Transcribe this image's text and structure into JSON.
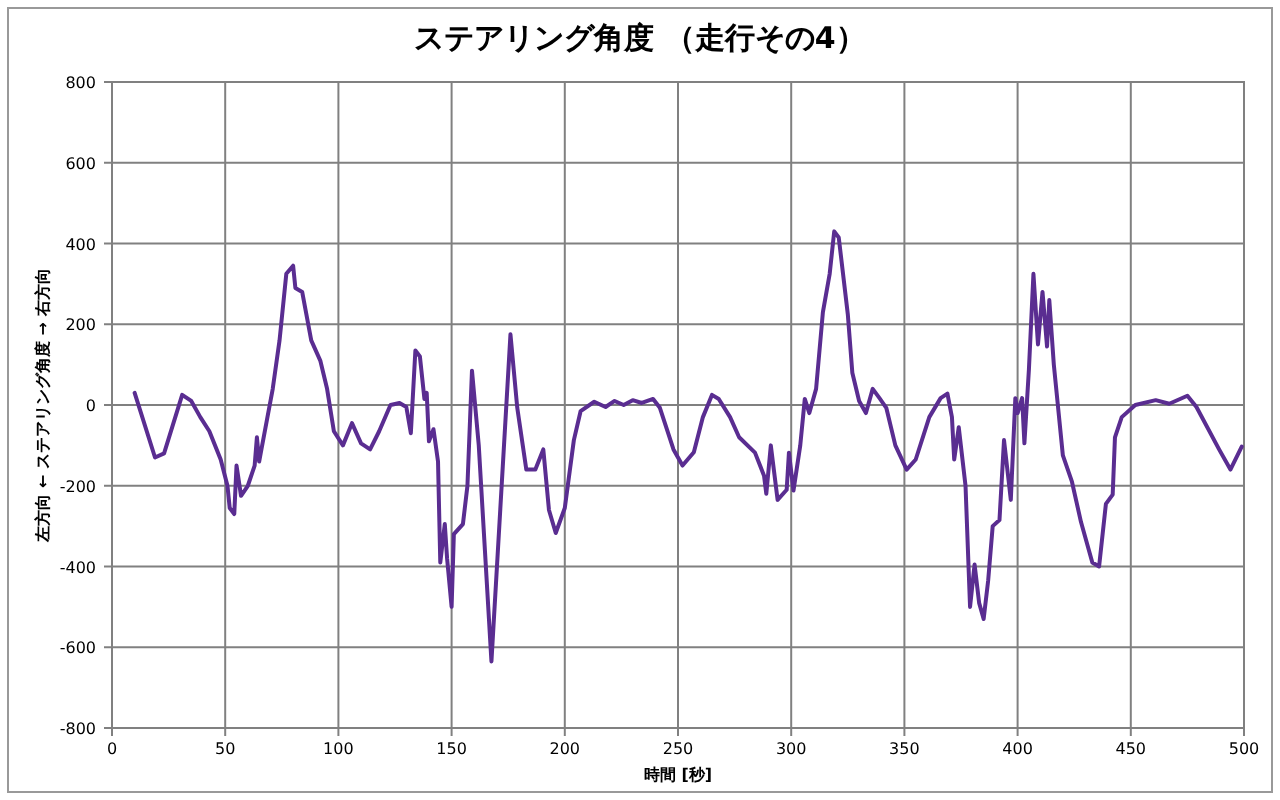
{
  "chart_data": {
    "type": "line",
    "title": "ステアリング角度 （走行その4）",
    "xlabel": "時間 [秒]",
    "ylabel": "左方向 ← ステアリング角度 → 右方向",
    "color": "#5a2d91",
    "xlim": [
      0,
      500
    ],
    "ylim": [
      -800,
      800
    ],
    "xticks": [
      0,
      50,
      100,
      150,
      200,
      250,
      300,
      350,
      400,
      450,
      500
    ],
    "yticks": [
      -800,
      -600,
      -400,
      -200,
      0,
      200,
      400,
      600,
      800
    ],
    "grid": true,
    "x": [
      10,
      19,
      23,
      31,
      35,
      39,
      43,
      48,
      51,
      52,
      54,
      55,
      57,
      60,
      63,
      64,
      65,
      66,
      71,
      74,
      77,
      80,
      81,
      84,
      88,
      92,
      95,
      98,
      102,
      106,
      110,
      114,
      118,
      123,
      127,
      130,
      132,
      134,
      136,
      138,
      139,
      140,
      142,
      144,
      145,
      147,
      148,
      150,
      151,
      155,
      157,
      159,
      162,
      167.6,
      176,
      179,
      183,
      187,
      190.5,
      193,
      196,
      200,
      204,
      207,
      213,
      218,
      222,
      226,
      230,
      234,
      239,
      242,
      248,
      252,
      257,
      261,
      265,
      268,
      273,
      277,
      284,
      288,
      289,
      291,
      294,
      298,
      299,
      301,
      304,
      306,
      308,
      311,
      314,
      317,
      319,
      321,
      325,
      327,
      330,
      333,
      336,
      339,
      342,
      346,
      351,
      355,
      361,
      366,
      369,
      371,
      372,
      374,
      377,
      379,
      381,
      383,
      385,
      387,
      389,
      392,
      394,
      397,
      399,
      400,
      402,
      403,
      405,
      407,
      409,
      411,
      413,
      414,
      416,
      420,
      424,
      428,
      433,
      436,
      439,
      442,
      443,
      446,
      452,
      461,
      467,
      475,
      479,
      489,
      494,
      499
    ],
    "values": [
      30,
      -130,
      -120,
      25,
      10,
      -30,
      -65,
      -135,
      -200,
      -255,
      -270,
      -150,
      -225,
      -200,
      -150,
      -80,
      -140,
      -110,
      40,
      160,
      325,
      345,
      290,
      280,
      160,
      110,
      40,
      -65,
      -100,
      -45,
      -95,
      -110,
      -65,
      0,
      5,
      -5,
      -70,
      135,
      120,
      15,
      30,
      -90,
      -60,
      -140,
      -390,
      -295,
      -380,
      -500,
      -320,
      -295,
      -200,
      85,
      -100,
      -635,
      175,
      -7,
      -160,
      -160,
      -110,
      -260,
      -317,
      -255,
      -87,
      -15,
      8,
      -5,
      10,
      0,
      12,
      5,
      15,
      -7,
      -110,
      -150,
      -117,
      -30,
      25,
      15,
      -30,
      -80,
      -118,
      -175,
      -220,
      -100,
      -235,
      -210,
      -118,
      -212,
      -100,
      15,
      -20,
      40,
      230,
      325,
      430,
      415,
      225,
      80,
      10,
      -20,
      40,
      17,
      -7,
      -100,
      -160,
      -135,
      -30,
      17,
      28,
      -30,
      -135,
      -55,
      -200,
      -500,
      -395,
      -490,
      -530,
      -435,
      -300,
      -285,
      -87,
      -235,
      17,
      -20,
      17,
      -95,
      88,
      325,
      150,
      280,
      145,
      260,
      100,
      -125,
      -190,
      -290,
      -390,
      -400,
      -245,
      -222,
      -80,
      -30,
      0,
      12,
      3,
      23,
      -5,
      -110,
      -160,
      -103
    ]
  }
}
